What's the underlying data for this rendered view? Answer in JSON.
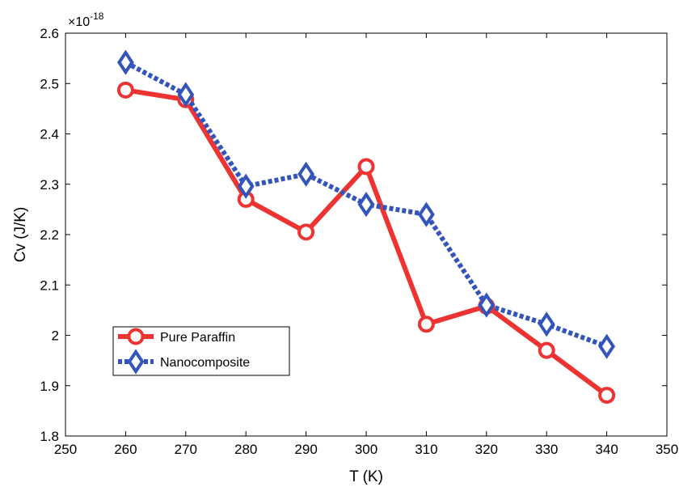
{
  "chart_data": {
    "type": "line",
    "xlabel": "T (K)",
    "ylabel": "Cv (J/K)",
    "y_multiplier_prefix": "×10",
    "y_multiplier_exponent": "-18",
    "xlim": [
      250,
      350
    ],
    "ylim": [
      1.8,
      2.6
    ],
    "xticks": [
      250,
      260,
      270,
      280,
      290,
      300,
      310,
      320,
      330,
      340,
      350
    ],
    "yticks": [
      1.8,
      1.9,
      2.0,
      2.1,
      2.2,
      2.3,
      2.4,
      2.5,
      2.6
    ],
    "xtick_labels": [
      "250",
      "260",
      "270",
      "280",
      "290",
      "300",
      "310",
      "320",
      "330",
      "340",
      "350"
    ],
    "ytick_labels": [
      "1.8",
      "1.9",
      "2",
      "2.1",
      "2.2",
      "2.3",
      "2.4",
      "2.5",
      "2.6"
    ],
    "grid": false,
    "legend_position": "lower-left",
    "x": [
      260,
      270,
      280,
      290,
      300,
      310,
      320,
      330,
      340
    ],
    "series": [
      {
        "name": "Pure Paraffin",
        "color": "#ee3333",
        "marker": "circle",
        "line_style": "solid",
        "values": [
          2.487,
          2.468,
          2.27,
          2.205,
          2.335,
          2.022,
          2.058,
          1.97,
          1.881
        ]
      },
      {
        "name": "Nanocomposite",
        "color": "#3355bb",
        "marker": "diamond",
        "line_style": "dotted",
        "values": [
          2.542,
          2.478,
          2.296,
          2.32,
          2.26,
          2.24,
          2.06,
          2.022,
          1.978
        ]
      }
    ]
  }
}
